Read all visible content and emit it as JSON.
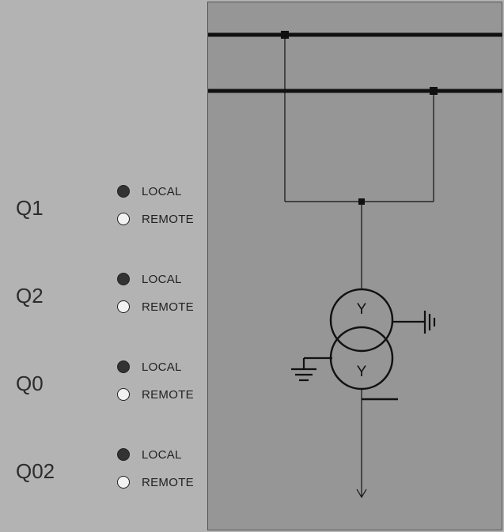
{
  "colors": {
    "left_panel": "#b3b3b3",
    "diagram_panel": "#969696",
    "line": "#111111",
    "radio_checked": "#333333",
    "radio_unchecked": "#f2f2f2"
  },
  "breakers": [
    {
      "label": "Q1",
      "local_label": "LOCAL",
      "remote_label": "REMOTE",
      "selected": "local"
    },
    {
      "label": "Q2",
      "local_label": "LOCAL",
      "remote_label": "REMOTE",
      "selected": "local"
    },
    {
      "label": "Q0",
      "local_label": "LOCAL",
      "remote_label": "REMOTE",
      "selected": "local"
    },
    {
      "label": "Q02",
      "local_label": "LOCAL",
      "remote_label": "REMOTE",
      "selected": "local"
    }
  ],
  "transformer": {
    "primary_winding": "Y",
    "secondary_winding": "Y"
  }
}
